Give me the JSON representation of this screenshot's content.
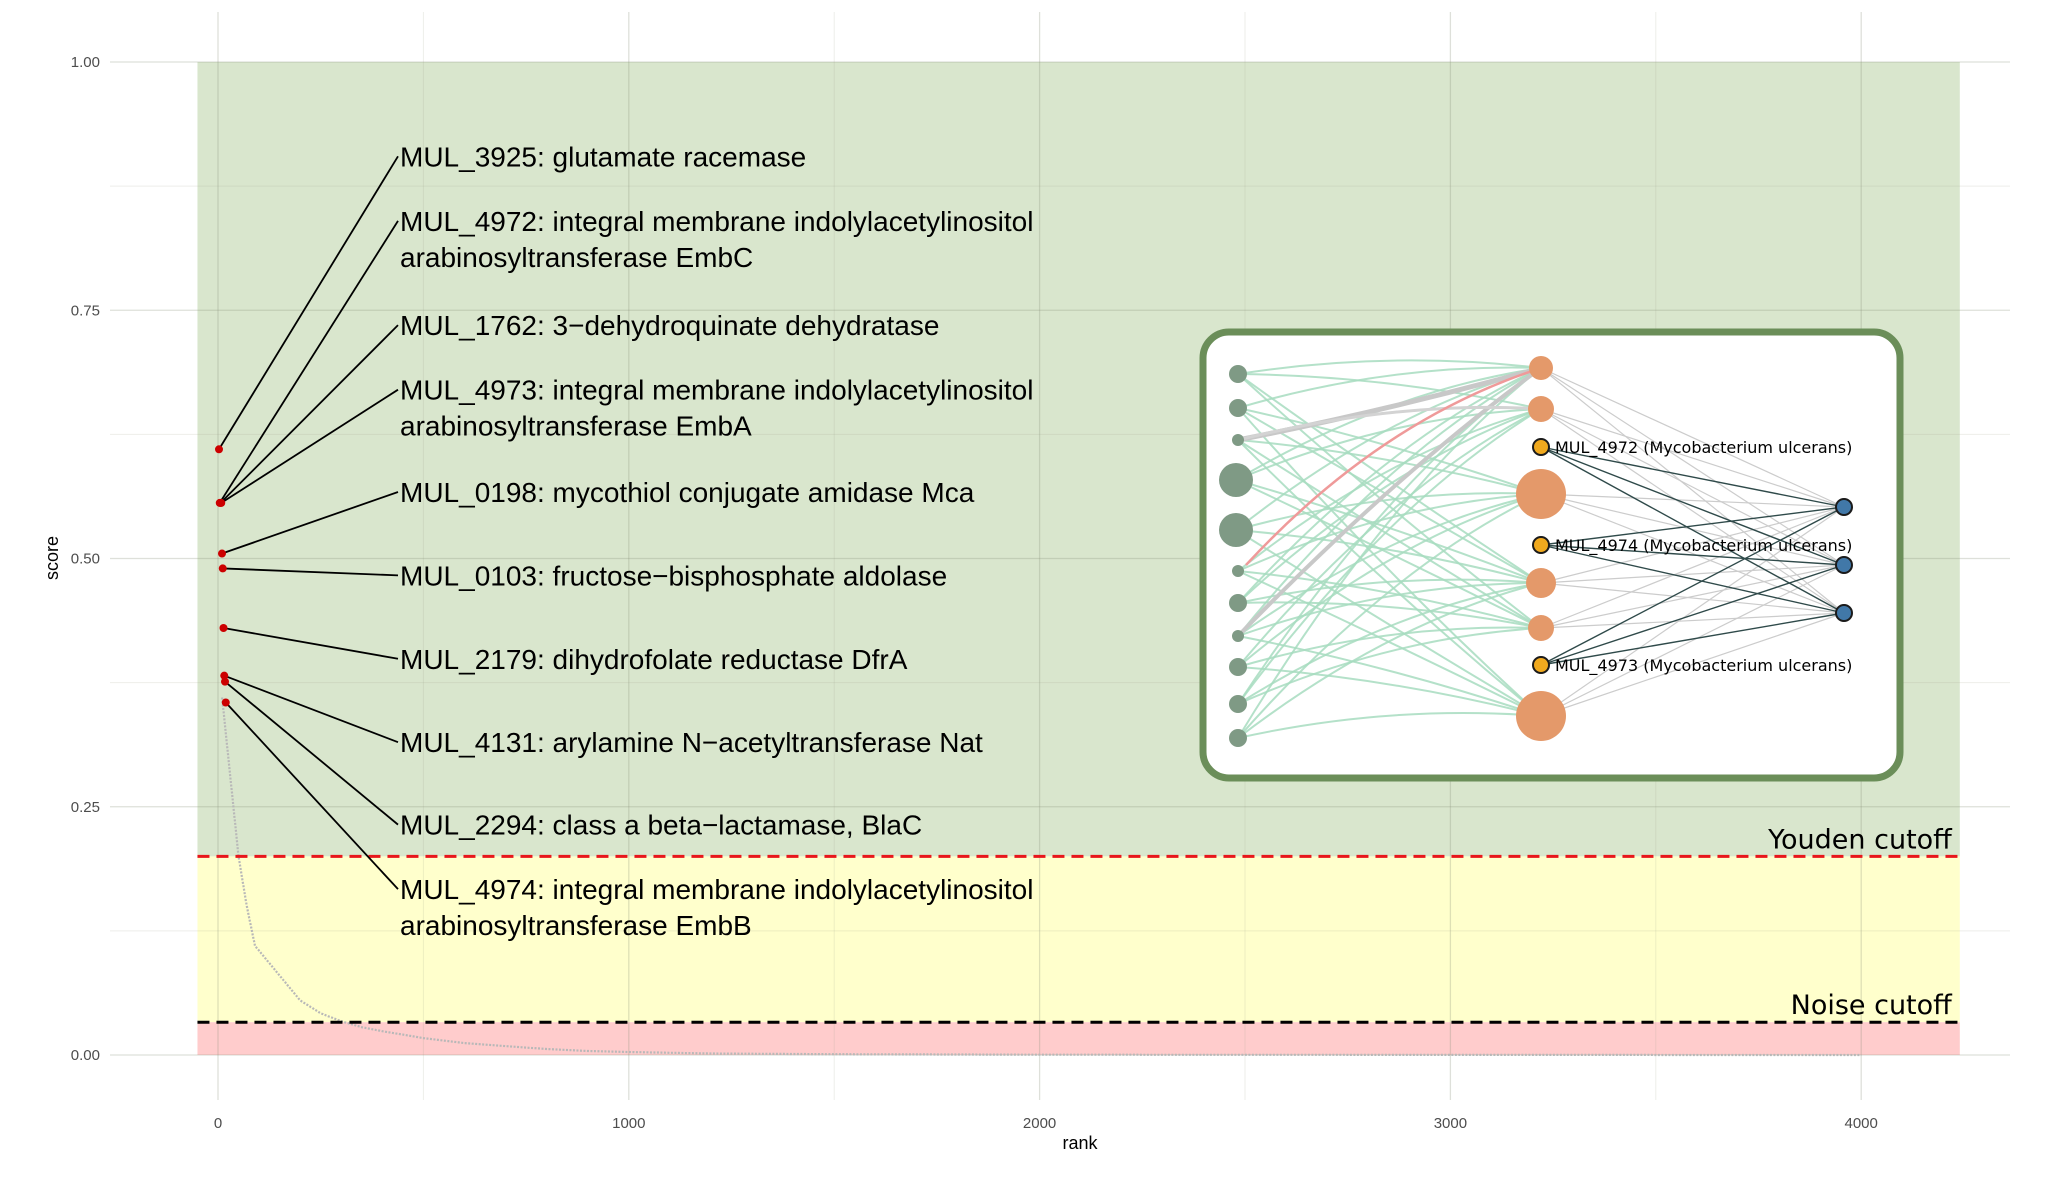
{
  "chart_data": {
    "type": "scatter",
    "xlabel": "rank",
    "ylabel": "score",
    "xlim": [
      -50,
      4240
    ],
    "ylim": [
      0,
      1.0
    ],
    "x_ticks": [
      {
        "value": 0,
        "label": "0"
      },
      {
        "value": 1000,
        "label": "1000"
      },
      {
        "value": 2000,
        "label": "2000"
      },
      {
        "value": 3000,
        "label": "3000"
      },
      {
        "value": 4000,
        "label": "4000"
      }
    ],
    "y_ticks": [
      {
        "value": 0,
        "label": "0.00"
      },
      {
        "value": 0.25,
        "label": "0.25"
      },
      {
        "value": 0.5,
        "label": "0.50"
      },
      {
        "value": 0.75,
        "label": "0.75"
      },
      {
        "value": 1.0,
        "label": "1.00"
      }
    ],
    "grid": true,
    "bands": [
      {
        "ymin": 0.2,
        "ymax": 1.0,
        "color": "#d9e6cd"
      },
      {
        "ymin": 0.033,
        "ymax": 0.2,
        "color": "#ffffcc"
      },
      {
        "ymin": 0,
        "ymax": 0.033,
        "color": "#ffcccc"
      }
    ],
    "cutoffs": [
      {
        "name": "Youden cutoff",
        "y": 0.2,
        "color": "#e8161b"
      },
      {
        "name": "Noise cutoff",
        "y": 0.033,
        "color": "#000000"
      }
    ],
    "curve": {
      "color": "#b8b8b8",
      "points": [
        [
          10,
          0.36
        ],
        [
          30,
          0.28
        ],
        [
          50,
          0.2
        ],
        [
          70,
          0.15
        ],
        [
          90,
          0.11
        ],
        [
          110,
          0.1
        ],
        [
          130,
          0.09
        ],
        [
          150,
          0.08
        ],
        [
          170,
          0.07
        ],
        [
          200,
          0.055
        ],
        [
          250,
          0.042
        ],
        [
          300,
          0.034
        ],
        [
          350,
          0.028
        ],
        [
          400,
          0.024
        ],
        [
          500,
          0.017
        ],
        [
          600,
          0.012
        ],
        [
          700,
          0.009
        ],
        [
          800,
          0.006
        ],
        [
          900,
          0.004
        ],
        [
          1000,
          0.003
        ],
        [
          1200,
          0.0015
        ],
        [
          1500,
          0.0008
        ],
        [
          2000,
          0.0003
        ],
        [
          3000,
          0.0001
        ],
        [
          4000,
          0.0
        ]
      ]
    },
    "highlighted": [
      {
        "rank": 1,
        "score": 0.61,
        "label": "MUL_3925: glutamate racemase",
        "label_y": 0.905,
        "label_lines": [
          "MUL_3925: glutamate racemase"
        ]
      },
      {
        "rank": 2,
        "score": 0.556,
        "label": "MUL_4972: integral membrane indolylacetylinositol arabinosyltransferase EmbC",
        "label_y": 0.84,
        "label_lines": [
          "MUL_4972: integral membrane indolylacetylinositol",
          "arabinosyltransferase EmbC"
        ]
      },
      {
        "rank": 3,
        "score": 0.556,
        "label": "MUL_1762: 3−dehydroquinate dehydratase",
        "label_y": 0.735,
        "label_lines": [
          "MUL_1762: 3−dehydroquinate dehydratase"
        ]
      },
      {
        "rank": 4,
        "score": 0.556,
        "label": "MUL_4973: integral membrane indolylacetylinositol arabinosyltransferase EmbA",
        "label_y": 0.67,
        "label_lines": [
          "MUL_4973: integral membrane indolylacetylinositol",
          "arabinosyltransferase EmbA"
        ]
      },
      {
        "rank": 5,
        "score": 0.505,
        "label": "MUL_0198: mycothiol conjugate amidase Mca",
        "label_y": 0.567,
        "label_lines": [
          "MUL_0198: mycothiol conjugate amidase Mca"
        ]
      },
      {
        "rank": 6,
        "score": 0.49,
        "label": "MUL_0103: fructose−bisphosphate aldolase",
        "label_y": 0.483,
        "label_lines": [
          "MUL_0103: fructose−bisphosphate aldolase"
        ]
      },
      {
        "rank": 7,
        "score": 0.43,
        "label": "MUL_2179: dihydrofolate reductase DfrA",
        "label_y": 0.399,
        "label_lines": [
          "MUL_2179: dihydrofolate reductase DfrA"
        ]
      },
      {
        "rank": 8,
        "score": 0.382,
        "label": "MUL_4131: arylamine N−acetyltransferase Nat",
        "label_y": 0.315,
        "label_lines": [
          "MUL_4131: arylamine N−acetyltransferase Nat"
        ]
      },
      {
        "rank": 9,
        "score": 0.376,
        "label": "MUL_2294: class a beta−lactamase, BlaC",
        "label_y": 0.232,
        "label_lines": [
          "MUL_2294: class a beta−lactamase, BlaC"
        ]
      },
      {
        "rank": 10,
        "score": 0.355,
        "label": "MUL_4974: integral membrane indolylacetylinositol arabinosyltransferase EmbB",
        "label_y": 0.167,
        "label_lines": [
          "MUL_4974: integral membrane indolylacetylinositol",
          "arabinosyltransferase EmbB"
        ]
      }
    ],
    "inset_network": {
      "labels": [
        "MUL_4972 (Mycobacterium ulcerans)",
        "MUL_4974 (Mycobacterium ulcerans)",
        "MUL_4973 (Mycobacterium ulcerans)"
      ]
    }
  },
  "colors": {
    "point": "#cc0000",
    "inset_border": "#6b8e59",
    "left_nodes": "#7f9a85",
    "mid_nodes": "#e4996a",
    "gene_nodes": "#f0a91e",
    "right_nodes": "#4178a8",
    "green_edges": "#a7dcc0",
    "grey_edges": "#cccccc",
    "red_edge": "#ef9a9a",
    "dark_edges": "#2f4a4a"
  }
}
